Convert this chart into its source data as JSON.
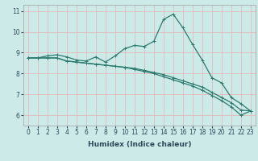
{
  "xlabel": "Humidex (Indice chaleur)",
  "ylabel": "",
  "background_color": "#cceae8",
  "line_color": "#2d7a6e",
  "grid_color": "#e8b0b0",
  "spine_color": "#aaaaaa",
  "text_color": "#2d4a5a",
  "xlim": [
    -0.5,
    23.5
  ],
  "ylim": [
    5.5,
    11.3
  ],
  "xticks": [
    0,
    1,
    2,
    3,
    4,
    5,
    6,
    7,
    8,
    9,
    10,
    11,
    12,
    13,
    14,
    15,
    16,
    17,
    18,
    19,
    20,
    21,
    22,
    23
  ],
  "yticks": [
    6,
    7,
    8,
    9,
    10,
    11
  ],
  "line1_x": [
    0,
    1,
    2,
    3,
    4,
    5,
    6,
    7,
    8,
    9,
    10,
    11,
    12,
    13,
    14,
    15,
    16,
    17,
    18,
    19,
    20,
    21,
    22,
    23
  ],
  "line1_y": [
    8.75,
    8.75,
    8.85,
    8.9,
    8.8,
    8.65,
    8.6,
    8.8,
    8.55,
    8.85,
    9.2,
    9.35,
    9.3,
    9.55,
    10.6,
    10.85,
    10.2,
    9.4,
    8.65,
    7.8,
    7.55,
    6.85,
    6.55,
    6.2
  ],
  "line2_x": [
    0,
    1,
    2,
    3,
    4,
    5,
    6,
    7,
    8,
    9,
    10,
    11,
    12,
    13,
    14,
    15,
    16,
    17,
    18,
    19,
    20,
    21,
    22,
    23
  ],
  "line2_y": [
    8.75,
    8.75,
    8.75,
    8.75,
    8.6,
    8.55,
    8.5,
    8.45,
    8.4,
    8.35,
    8.3,
    8.25,
    8.15,
    8.05,
    7.95,
    7.8,
    7.65,
    7.5,
    7.35,
    7.1,
    6.85,
    6.6,
    6.25,
    6.2
  ],
  "line3_x": [
    0,
    1,
    2,
    3,
    4,
    5,
    6,
    7,
    8,
    9,
    10,
    11,
    12,
    13,
    14,
    15,
    16,
    17,
    18,
    19,
    20,
    21,
    22,
    23
  ],
  "line3_y": [
    8.75,
    8.75,
    8.75,
    8.75,
    8.6,
    8.55,
    8.5,
    8.45,
    8.4,
    8.35,
    8.3,
    8.2,
    8.1,
    8.0,
    7.85,
    7.7,
    7.55,
    7.4,
    7.2,
    6.95,
    6.7,
    6.4,
    6.0,
    6.2
  ],
  "marker": "+",
  "markersize": 3,
  "linewidth": 0.9,
  "label_fontsize": 6.5,
  "tick_fontsize": 5.5
}
